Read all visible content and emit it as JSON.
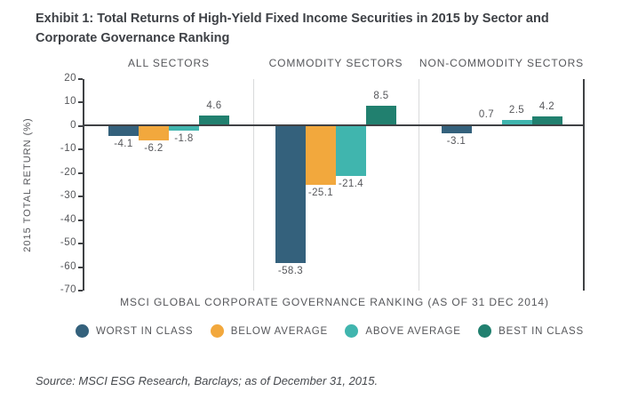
{
  "header": {
    "title": "Exhibit 1: Total Returns of High-Yield Fixed Income Securities in 2015 by Sector and Corporate Governance Ranking"
  },
  "chart_data": {
    "type": "bar",
    "ylabel": "2015 TOTAL RETURN (%)",
    "xlabel": "MSCI GLOBAL CORPORATE GOVERNANCE RANKING (AS OF 31 DEC 2014)",
    "ylim": [
      -70,
      20
    ],
    "yticks": [
      20,
      10,
      0,
      -10,
      -20,
      -30,
      -40,
      -50,
      -60,
      -70
    ],
    "grid": false,
    "legend_position": "bottom",
    "panels": [
      {
        "label": "ALL SECTORS",
        "values": [
          -4.1,
          -6.2,
          -1.8,
          4.6
        ]
      },
      {
        "label": "COMMODITY SECTORS",
        "values": [
          -58.3,
          -25.1,
          -21.4,
          8.5
        ]
      },
      {
        "label": "NON-COMMODITY SECTORS",
        "values": [
          -3.1,
          0.7,
          2.5,
          4.2
        ]
      }
    ],
    "series": [
      {
        "name": "WORST IN CLASS",
        "color": "#34617c"
      },
      {
        "name": "BELOW AVERAGE",
        "color": "#f2a83d"
      },
      {
        "name": "ABOVE AVERAGE",
        "color": "#40b5ae"
      },
      {
        "name": "BEST IN CLASS",
        "color": "#21806f"
      }
    ]
  },
  "footer": {
    "source": "Source: MSCI ESG Research, Barclays; as of December 31, 2015."
  }
}
